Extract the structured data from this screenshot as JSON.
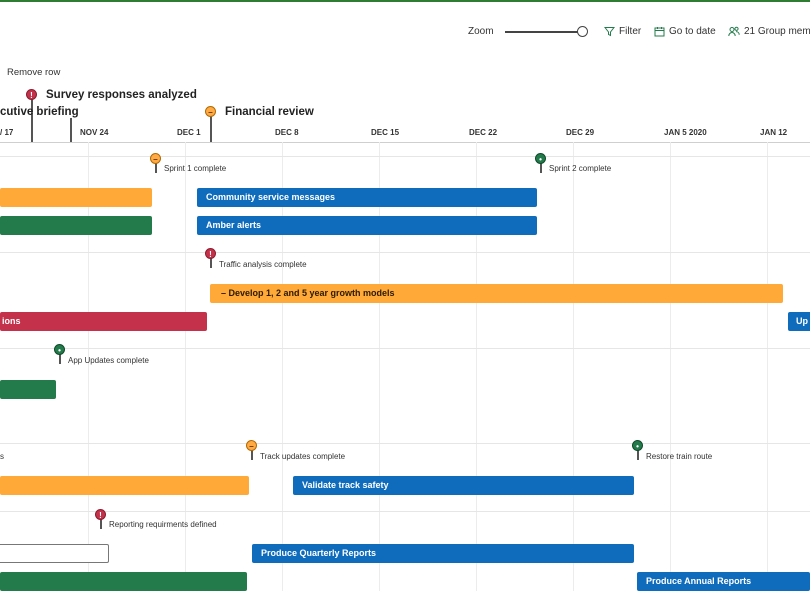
{
  "toolbar": {
    "zoom_label": "Zoom",
    "filter_label": "Filter",
    "goto_label": "Go to date",
    "group_label": "21 Group memb"
  },
  "remove_row": "Remove row",
  "key_milestones": [
    {
      "label": "Survey responses analyzed",
      "status": "red"
    },
    {
      "label": "cutive briefing",
      "status": "none"
    },
    {
      "label": "Financial review",
      "status": "orange"
    }
  ],
  "dates": [
    "/ 17",
    "NOV 24",
    "DEC 1",
    "DEC 8",
    "DEC 15",
    "DEC 22",
    "DEC 29",
    "JAN 5 2020",
    "JAN 12"
  ],
  "milestones": [
    {
      "label": "Sprint 1 complete",
      "status": "orange"
    },
    {
      "label": "Sprint 2 complete",
      "status": "green"
    },
    {
      "label": "Traffic analysis complete",
      "status": "red"
    },
    {
      "label": "App Updates complete",
      "status": "green"
    },
    {
      "label": "Track updates complete",
      "status": "orange"
    },
    {
      "label": "Restore train route",
      "status": "green"
    },
    {
      "label": "Reporting requirments defined",
      "status": "red"
    }
  ],
  "bars": [
    {
      "label": "",
      "color": "orange"
    },
    {
      "label": "Community service messages",
      "color": "blue"
    },
    {
      "label": "",
      "color": "green"
    },
    {
      "label": "Amber alerts",
      "color": "blue"
    },
    {
      "label": "–   Develop 1, 2 and 5 year growth models",
      "color": "orange"
    },
    {
      "label": "ions",
      "color": "red"
    },
    {
      "label": "Up",
      "color": "blue"
    },
    {
      "label": "",
      "color": "green"
    },
    {
      "label": "s",
      "color": "none"
    },
    {
      "label": "",
      "color": "orange"
    },
    {
      "label": "Validate track safety",
      "color": "blue"
    },
    {
      "label": "",
      "color": "outline"
    },
    {
      "label": "Produce Quarterly Reports",
      "color": "blue"
    },
    {
      "label": "",
      "color": "green"
    },
    {
      "label": "Produce Annual Reports",
      "color": "blue"
    }
  ],
  "colors": {
    "blue": "#0f6cbd",
    "orange": "#ffa938",
    "green": "#237b4b",
    "red": "#c4314b"
  }
}
